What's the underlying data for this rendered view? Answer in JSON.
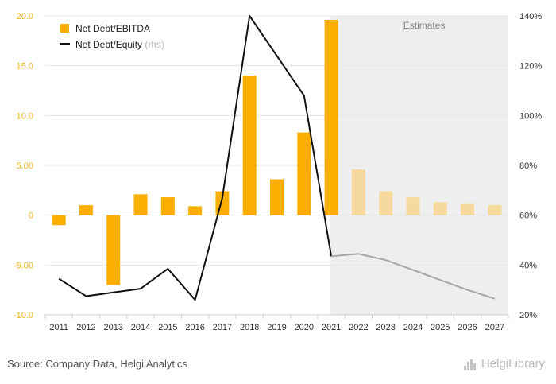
{
  "chart_data": {
    "type": "bar+line",
    "categories": [
      "2011",
      "2012",
      "2013",
      "2014",
      "2015",
      "2016",
      "2017",
      "2018",
      "2019",
      "2020",
      "2021",
      "2022",
      "2023",
      "2024",
      "2025",
      "2026",
      "2027"
    ],
    "estimates_from": "2022",
    "estimates_label": "Estimates",
    "series": [
      {
        "name": "Net Debt/EBITDA",
        "axis": "left",
        "kind": "bar",
        "color": "#f9ae00",
        "estimate_color": "#f6d99d",
        "values": [
          -1.0,
          1.0,
          -7.0,
          2.1,
          1.8,
          0.9,
          2.4,
          14.0,
          3.6,
          8.3,
          19.6,
          4.6,
          2.4,
          1.8,
          1.3,
          1.2,
          1.0
        ]
      },
      {
        "name": "Net Debt/Equity",
        "suffix": "(rhs)",
        "axis": "right",
        "kind": "line",
        "color": "#111111",
        "estimate_color": "#a6a6a6",
        "values": [
          34.5,
          27.5,
          29.0,
          30.5,
          38.5,
          26.0,
          67.0,
          140.0,
          124.0,
          108.0,
          43.5,
          44.5,
          42.0,
          38.0,
          34.0,
          30.0,
          26.5
        ]
      }
    ],
    "left_axis": {
      "min": -10,
      "max": 20,
      "ticks": [
        "20.0",
        "15.0",
        "10.0",
        "5.00",
        "0",
        "-5.00",
        "-10.0"
      ],
      "tick_values": [
        20,
        15,
        10,
        5,
        0,
        -5,
        -10
      ]
    },
    "right_axis": {
      "min": 20,
      "max": 140,
      "ticks": [
        "140%",
        "120%",
        "100%",
        "80%",
        "60%",
        "40%",
        "20%"
      ],
      "tick_values": [
        140,
        120,
        100,
        80,
        60,
        40,
        20
      ]
    }
  },
  "footer": {
    "source": "Source: Company Data, Helgi Analytics",
    "brand": "HelgiLibrary"
  }
}
